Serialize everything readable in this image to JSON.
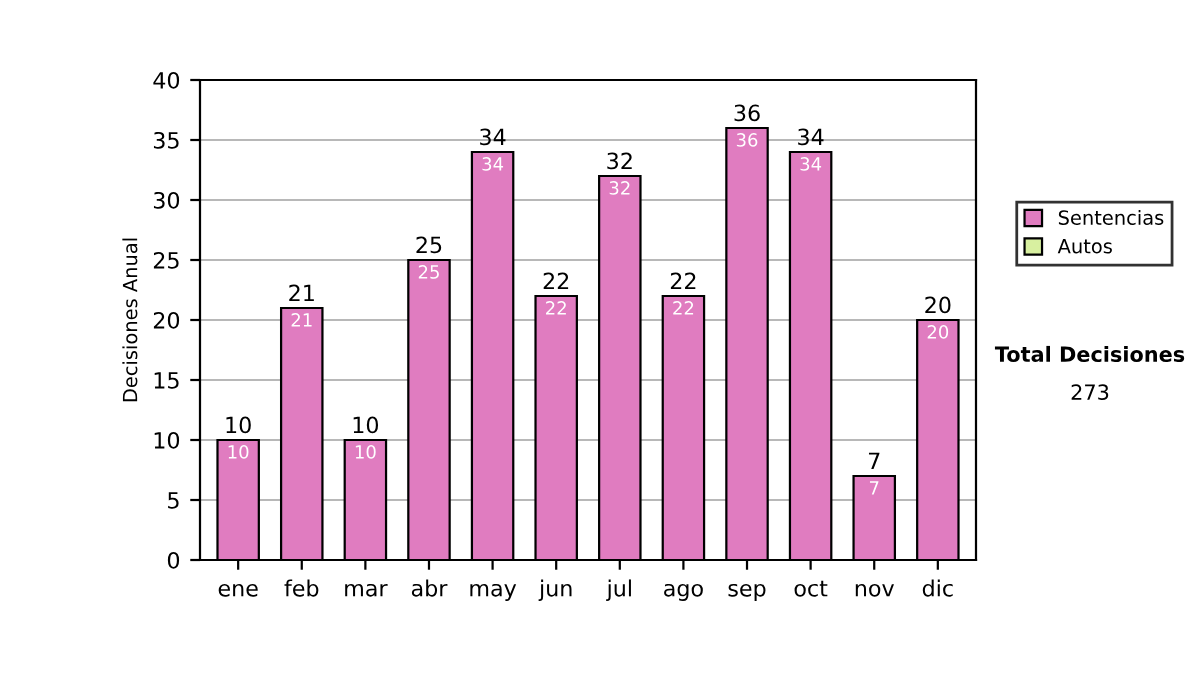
{
  "chart_data": {
    "type": "bar",
    "ylabel": "Decisiones Anual",
    "stacked": true,
    "categories": [
      "ene",
      "feb",
      "mar",
      "abr",
      "may",
      "jun",
      "jul",
      "ago",
      "sep",
      "oct",
      "nov",
      "dic"
    ],
    "series": [
      {
        "name": "Sentencias",
        "color": "#e07cc0",
        "values": [
          10,
          21,
          10,
          25,
          34,
          22,
          32,
          22,
          36,
          34,
          7,
          20
        ],
        "value_labels": [
          "10",
          "21",
          "10",
          "25",
          "34",
          "22",
          "32",
          "22",
          "36",
          "34",
          "7",
          "20"
        ]
      },
      {
        "name": "Autos",
        "color": "#d8f0a0",
        "values": [
          0,
          0,
          0,
          0,
          0,
          0,
          0,
          0,
          0,
          0,
          0,
          0
        ]
      }
    ],
    "totals": [
      "10",
      "21",
      "10",
      "25",
      "34",
      "22",
      "32",
      "22",
      "36",
      "34",
      "7",
      "20"
    ],
    "ylim": [
      0,
      40
    ],
    "yticks": [
      0,
      5,
      10,
      15,
      20,
      25,
      30,
      35,
      40
    ],
    "grid": "y",
    "legend": "right",
    "annotations": [
      "Total Decisiones",
      "273"
    ]
  }
}
